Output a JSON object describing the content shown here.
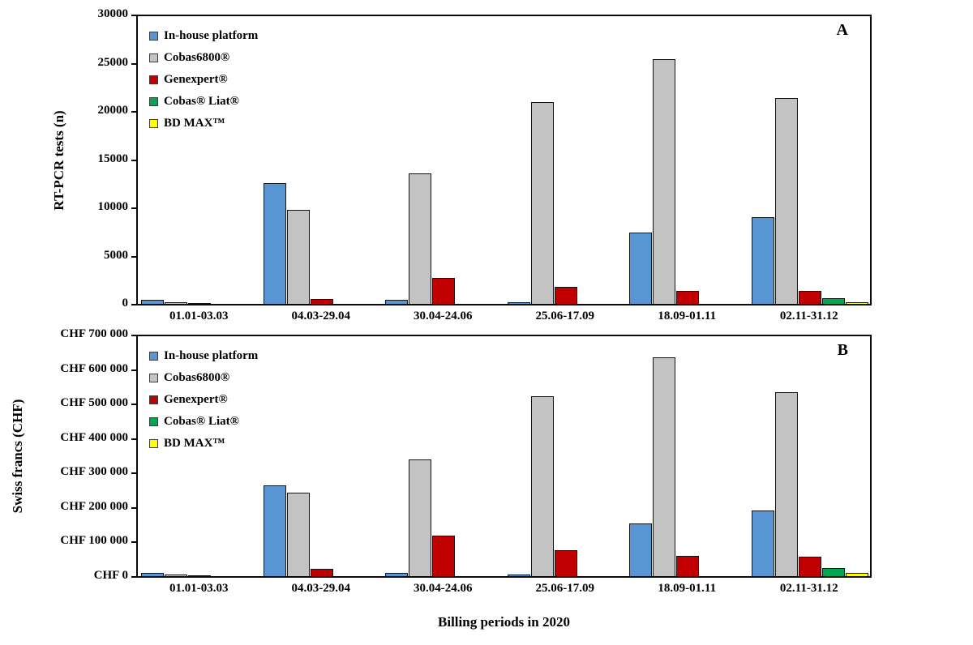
{
  "figure": {
    "x_axis_title": "Billing periods in 2020"
  },
  "chart_data": [
    {
      "type": "bar",
      "panel_label": "A",
      "title": "",
      "xlabel": "",
      "ylabel": "RT-PCR tests (n)",
      "ylim": [
        0,
        30000
      ],
      "ytick_step": 5000,
      "ytick_labels": [
        "0",
        "5000",
        "10000",
        "15000",
        "20000",
        "25000",
        "30000"
      ],
      "grid": false,
      "legend_position": "top-left",
      "categories": [
        "01.01-03.03",
        "04.03-29.04",
        "30.04-24.06",
        "25.06-17.09",
        "18.09-01.11",
        "02.11-31.12"
      ],
      "series": [
        {
          "name": "In-house platform",
          "color": "#5796D2",
          "values": [
            300,
            12500,
            300,
            100,
            7350,
            9000
          ]
        },
        {
          "name": "Cobas6800®",
          "color": "#C3C3C3",
          "values": [
            80,
            9700,
            13500,
            21000,
            25400,
            21400
          ]
        },
        {
          "name": "Genexpert®",
          "color": "#C00000",
          "values": [
            30,
            400,
            2600,
            1700,
            1250,
            1250
          ]
        },
        {
          "name": "Cobas® Liat®",
          "color": "#00A651",
          "values": [
            0,
            0,
            0,
            0,
            0,
            550
          ]
        },
        {
          "name": "BD MAX™",
          "color": "#FFFF00",
          "values": [
            0,
            0,
            0,
            0,
            0,
            100
          ]
        }
      ]
    },
    {
      "type": "bar",
      "panel_label": "B",
      "title": "",
      "xlabel": "Billing periods in 2020",
      "ylabel": "Swiss francs (CHF)",
      "ylim": [
        0,
        700000
      ],
      "ytick_step": 100000,
      "ytick_labels": [
        "CHF 0",
        "CHF 100 000",
        "CHF 200 000",
        "CHF 300 000",
        "CHF 400 000",
        "CHF 500 000",
        "CHF 600 000",
        "CHF 700 000"
      ],
      "grid": false,
      "legend_position": "top-left",
      "categories": [
        "01.01-03.03",
        "04.03-29.04",
        "30.04-24.06",
        "25.06-17.09",
        "18.09-01.11",
        "02.11-31.12"
      ],
      "series": [
        {
          "name": "In-house platform",
          "color": "#5796D2",
          "values": [
            8000,
            262000,
            7000,
            3000,
            152000,
            190000
          ]
        },
        {
          "name": "Cobas6800®",
          "color": "#C3C3C3",
          "values": [
            2000,
            241000,
            338000,
            523000,
            637000,
            535000
          ]
        },
        {
          "name": "Genexpert®",
          "color": "#C00000",
          "values": [
            1000,
            18000,
            116000,
            73000,
            56000,
            55000
          ]
        },
        {
          "name": "Cobas® Liat®",
          "color": "#00A651",
          "values": [
            0,
            0,
            0,
            0,
            0,
            22000
          ]
        },
        {
          "name": "BD MAX™",
          "color": "#FFFF00",
          "values": [
            0,
            0,
            0,
            0,
            0,
            7000
          ]
        }
      ]
    }
  ]
}
